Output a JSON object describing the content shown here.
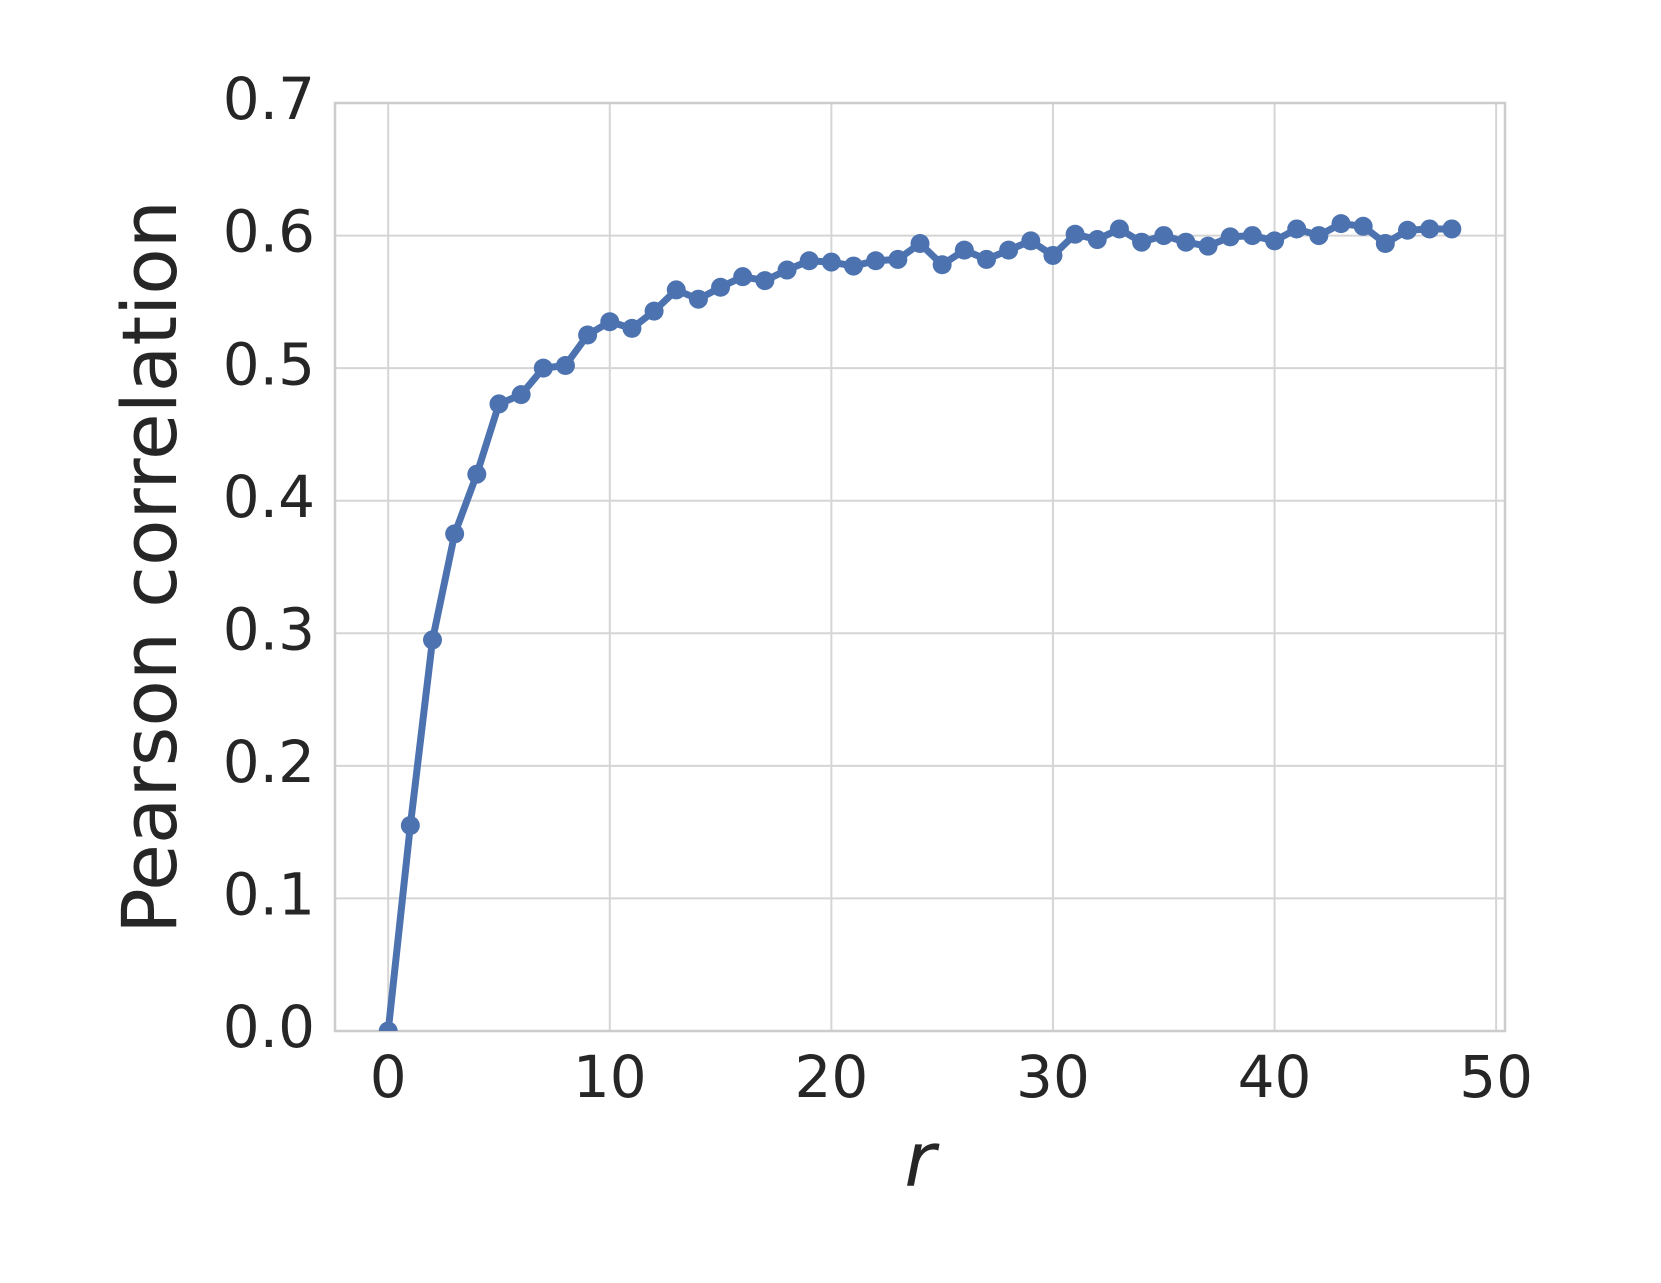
{
  "chart_data": {
    "type": "line",
    "xlabel": "r",
    "ylabel": "Pearson correlation",
    "x": [
      0,
      1,
      2,
      3,
      4,
      5,
      6,
      7,
      8,
      9,
      10,
      11,
      12,
      13,
      14,
      15,
      16,
      17,
      18,
      19,
      20,
      21,
      22,
      23,
      24,
      25,
      26,
      27,
      28,
      29,
      30,
      31,
      32,
      33,
      34,
      35,
      36,
      37,
      38,
      39,
      40,
      41,
      42,
      43,
      44,
      45,
      46,
      47,
      48
    ],
    "series": [
      {
        "color": "#4c72b0",
        "values": [
          0.0,
          0.155,
          0.295,
          0.375,
          0.42,
          0.473,
          0.48,
          0.5,
          0.502,
          0.525,
          0.535,
          0.53,
          0.543,
          0.559,
          0.552,
          0.561,
          0.569,
          0.566,
          0.574,
          0.581,
          0.58,
          0.577,
          0.581,
          0.582,
          0.594,
          0.578,
          0.589,
          0.582,
          0.589,
          0.596,
          0.585,
          0.601,
          0.597,
          0.605,
          0.595,
          0.6,
          0.595,
          0.592,
          0.599,
          0.6,
          0.596,
          0.605,
          0.6,
          0.609,
          0.607,
          0.594,
          0.604,
          0.605,
          0.605
        ]
      }
    ],
    "xlim": [
      -2.4,
      50.4
    ],
    "ylim": [
      0,
      0.7
    ],
    "xticks": [
      0,
      10,
      20,
      30,
      40,
      50
    ],
    "yticks": [
      {
        "value": 0,
        "label": "0.0"
      },
      0.1,
      0.2,
      0.3,
      0.4,
      0.5,
      0.6,
      0.7
    ],
    "grid": true
  }
}
